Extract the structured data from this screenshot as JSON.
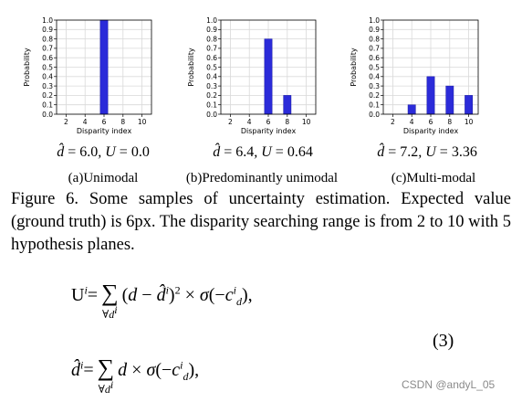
{
  "chart_data": [
    {
      "type": "bar",
      "x": [
        6
      ],
      "values": [
        1.0
      ],
      "xlabel": "Disparity index",
      "ylabel": "Probability",
      "xticks": [
        "2",
        "4",
        "6",
        "8",
        "10"
      ],
      "yticks": [
        "0.0",
        "0.1",
        "0.2",
        "0.3",
        "0.4",
        "0.5",
        "0.6",
        "0.7",
        "0.8",
        "0.9",
        "1.0"
      ],
      "xlim": [
        1,
        11
      ],
      "ylim": [
        0,
        1.0
      ],
      "grid": true,
      "bar_color": "#2b2bd9"
    },
    {
      "type": "bar",
      "x": [
        6,
        8
      ],
      "values": [
        0.8,
        0.2
      ],
      "xlabel": "Disparity index",
      "ylabel": "Probability",
      "xticks": [
        "2",
        "4",
        "6",
        "8",
        "10"
      ],
      "yticks": [
        "0.0",
        "0.1",
        "0.2",
        "0.3",
        "0.4",
        "0.5",
        "0.6",
        "0.7",
        "0.8",
        "0.9",
        "1.0"
      ],
      "xlim": [
        1,
        11
      ],
      "ylim": [
        0,
        1.0
      ],
      "grid": true,
      "bar_color": "#2b2bd9"
    },
    {
      "type": "bar",
      "x": [
        4,
        6,
        8,
        10
      ],
      "values": [
        0.1,
        0.4,
        0.3,
        0.2
      ],
      "xlabel": "Disparity index",
      "ylabel": "Probability",
      "xticks": [
        "2",
        "4",
        "6",
        "8",
        "10"
      ],
      "yticks": [
        "0.0",
        "0.1",
        "0.2",
        "0.3",
        "0.4",
        "0.5",
        "0.6",
        "0.7",
        "0.8",
        "0.9",
        "1.0"
      ],
      "xlim": [
        1,
        11
      ],
      "ylim": [
        0,
        1.0
      ],
      "grid": true,
      "bar_color": "#2b2bd9"
    }
  ],
  "panels": [
    {
      "d_value": "6.0",
      "u_value": "0.0",
      "label": "(a)Unimodal"
    },
    {
      "d_value": "6.4",
      "u_value": "0.64",
      "label": "(b)Predominantly unimodal"
    },
    {
      "d_value": "7.2",
      "u_value": "3.36",
      "label": "(c)Multi-modal"
    }
  ],
  "caption": "Figure 6. Some samples of uncertainty estimation. Expected value (ground truth) is 6px.  The disparity searching range is from 2 to 10 with 5 hypothesis planes.",
  "equation_number": "(3)",
  "watermark": "CSDN @andyL_05"
}
